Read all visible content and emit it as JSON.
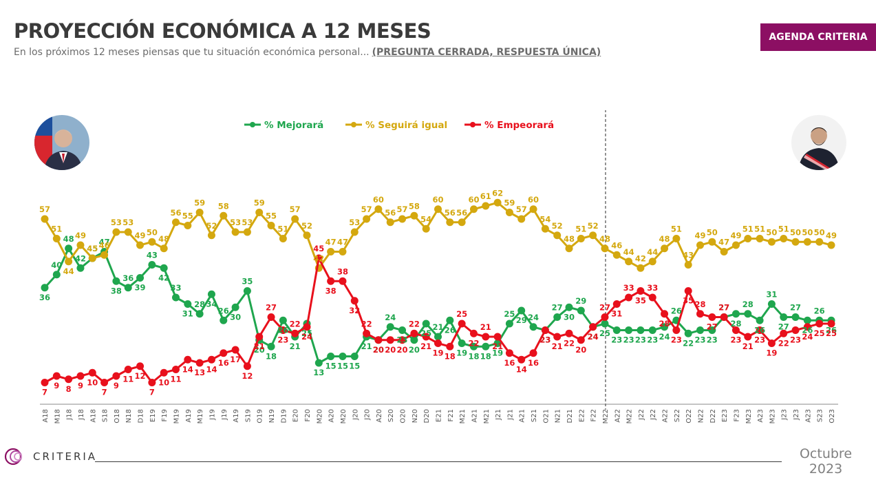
{
  "header": {
    "title": "PROYECCIÓN ECONÓMICA A 12 MESES",
    "subtitle": "En los próximos 12 meses piensas que tu situación económica personal...",
    "subtitle_emphasis": "(PREGUNTA CERRADA, RESPUESTA ÚNICA)",
    "badge": "AGENDA CRITERIA"
  },
  "footer": {
    "brand": "CRITERIA",
    "month": "Octubre",
    "year": "2023"
  },
  "colors": {
    "mejorara": "#1fa64e",
    "seguira": "#d4a80f",
    "empeorara": "#e8101c",
    "badge": "#8c0f63",
    "text_dark": "#3a3a3a"
  },
  "chart_data": {
    "type": "line",
    "title": "",
    "xlabel": "",
    "ylabel": "",
    "ylim": [
      0,
      100
    ],
    "legend_position": "top-center",
    "grid": false,
    "x": [
      "A18",
      "M18",
      "J18",
      "J18",
      "A18",
      "S18",
      "O18",
      "N18",
      "D18",
      "E19",
      "F19",
      "M19",
      "A19",
      "M19",
      "J19",
      "J19",
      "A19",
      "S19",
      "O19",
      "N19",
      "D19",
      "E20",
      "F20",
      "M20",
      "A20",
      "M20",
      "J20",
      "J20",
      "A20",
      "S20",
      "O20",
      "N20",
      "D20",
      "E21",
      "F21",
      "M21",
      "A21",
      "M21",
      "J21",
      "J21",
      "A21",
      "S21",
      "O21",
      "N21",
      "D21",
      "E22",
      "F22",
      "M22",
      "A22",
      "M22",
      "J22",
      "J22",
      "A22",
      "S22",
      "O22",
      "N22",
      "D22",
      "E23",
      "F23",
      "M23",
      "A23",
      "M23",
      "J23",
      "J23",
      "A23",
      "S23",
      "O23"
    ],
    "vertical_marker_category_index": 47,
    "series": [
      {
        "name": "% Mejorará",
        "color": "#1fa64e",
        "values": [
          36,
          40,
          48,
          42,
          45,
          47,
          38,
          36,
          39,
          43,
          42,
          33,
          31,
          28,
          34,
          26,
          30,
          35,
          20,
          18,
          26,
          21,
          25,
          13,
          15,
          15,
          15,
          21,
          20,
          24,
          23,
          20,
          25,
          21,
          26,
          19,
          18,
          18,
          19,
          25,
          29,
          24,
          23,
          27,
          30,
          29,
          24,
          25,
          23,
          23,
          23,
          23,
          24,
          26,
          22,
          23,
          23,
          27,
          28,
          28,
          26,
          31,
          27,
          27,
          26,
          26,
          26
        ]
      },
      {
        "name": "% Seguirá igual",
        "color": "#d4a80f",
        "values": [
          57,
          51,
          44,
          49,
          45,
          46,
          53,
          53,
          49,
          50,
          48,
          56,
          55,
          59,
          52,
          58,
          53,
          53,
          59,
          55,
          51,
          57,
          52,
          42,
          47,
          47,
          53,
          57,
          60,
          56,
          57,
          58,
          54,
          60,
          56,
          56,
          60,
          61,
          62,
          59,
          57,
          60,
          54,
          52,
          48,
          51,
          52,
          48,
          46,
          44,
          42,
          44,
          48,
          51,
          43,
          49,
          50,
          47,
          49,
          51,
          51,
          50,
          51,
          50,
          50,
          50,
          49
        ]
      },
      {
        "name": "% Empeorará",
        "color": "#e8101c",
        "values": [
          7,
          9,
          8,
          9,
          10,
          7,
          9,
          11,
          12,
          7,
          10,
          11,
          14,
          13,
          14,
          16,
          17,
          12,
          21,
          27,
          23,
          22,
          24,
          45,
          38,
          38,
          32,
          22,
          20,
          20,
          20,
          22,
          21,
          19,
          18,
          25,
          22,
          21,
          21,
          16,
          14,
          16,
          23,
          21,
          22,
          20,
          24,
          27,
          31,
          33,
          35,
          33,
          28,
          23,
          35,
          28,
          27,
          27,
          23,
          21,
          23,
          19,
          22,
          23,
          24,
          25,
          25
        ]
      }
    ]
  }
}
